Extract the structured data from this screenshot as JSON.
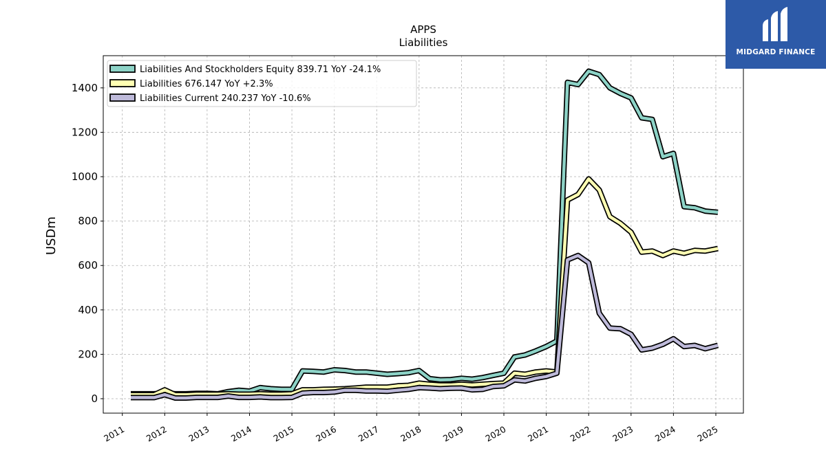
{
  "brand": {
    "name": "MIDGARD FINANCE",
    "bg_color": "#2d5aa8",
    "icon": "midgard-logo-icon"
  },
  "chart_data": {
    "type": "line",
    "title": "APPS",
    "subtitle": "Liabilities",
    "xlabel": "",
    "ylabel": "USDm",
    "xlim": [
      2010.55,
      2025.65
    ],
    "ylim": [
      -65,
      1545
    ],
    "yticks": [
      0,
      200,
      400,
      600,
      800,
      1000,
      1200,
      1400
    ],
    "xticks": [
      "2011",
      "2012",
      "2013",
      "2014",
      "2015",
      "2016",
      "2017",
      "2018",
      "2019",
      "2020",
      "2021",
      "2022",
      "2023",
      "2024",
      "2025"
    ],
    "grid": true,
    "legend_position": "top-left",
    "series": [
      {
        "name": "Liabilities And Stockholders Equity",
        "legend": "Liabilities And Stockholders Equity  839.71 YoY -24.1%",
        "color": "#8dd3c7",
        "points": [
          [
            2011.2,
            22
          ],
          [
            2011.5,
            22
          ],
          [
            2011.75,
            22
          ],
          [
            2012.0,
            25
          ],
          [
            2012.25,
            22
          ],
          [
            2012.5,
            22
          ],
          [
            2012.75,
            24
          ],
          [
            2013.0,
            24
          ],
          [
            2013.25,
            22
          ],
          [
            2013.5,
            32
          ],
          [
            2013.75,
            38
          ],
          [
            2014.0,
            34
          ],
          [
            2014.25,
            50
          ],
          [
            2014.5,
            45
          ],
          [
            2014.75,
            42
          ],
          [
            2015.0,
            42
          ],
          [
            2015.25,
            125
          ],
          [
            2015.5,
            123
          ],
          [
            2015.75,
            120
          ],
          [
            2016.0,
            130
          ],
          [
            2016.25,
            127
          ],
          [
            2016.5,
            120
          ],
          [
            2016.75,
            120
          ],
          [
            2017.0,
            115
          ],
          [
            2017.25,
            110
          ],
          [
            2017.5,
            113
          ],
          [
            2017.75,
            117
          ],
          [
            2018.0,
            127
          ],
          [
            2018.25,
            90
          ],
          [
            2018.5,
            85
          ],
          [
            2018.75,
            86
          ],
          [
            2019.0,
            92
          ],
          [
            2019.25,
            88
          ],
          [
            2019.5,
            95
          ],
          [
            2019.75,
            105
          ],
          [
            2020.0,
            115
          ],
          [
            2020.25,
            188
          ],
          [
            2020.5,
            197
          ],
          [
            2020.75,
            215
          ],
          [
            2021.0,
            235
          ],
          [
            2021.25,
            260
          ],
          [
            2021.5,
            1425
          ],
          [
            2021.75,
            1415
          ],
          [
            2022.0,
            1475
          ],
          [
            2022.25,
            1460
          ],
          [
            2022.5,
            1400
          ],
          [
            2022.75,
            1375
          ],
          [
            2023.0,
            1355
          ],
          [
            2023.25,
            1265
          ],
          [
            2023.5,
            1258
          ],
          [
            2023.75,
            1090
          ],
          [
            2024.0,
            1105
          ],
          [
            2024.25,
            865
          ],
          [
            2024.5,
            860
          ],
          [
            2024.75,
            845
          ],
          [
            2025.05,
            839.71
          ]
        ]
      },
      {
        "name": "Liabilities",
        "legend": "Liabilities  676.147 YoY +2.3%",
        "color": "#ffffb3",
        "points": [
          [
            2011.2,
            18
          ],
          [
            2011.5,
            18
          ],
          [
            2011.75,
            18
          ],
          [
            2012.0,
            40
          ],
          [
            2012.25,
            18
          ],
          [
            2012.5,
            18
          ],
          [
            2012.75,
            20
          ],
          [
            2013.0,
            20
          ],
          [
            2013.25,
            20
          ],
          [
            2013.5,
            22
          ],
          [
            2013.75,
            20
          ],
          [
            2014.0,
            20
          ],
          [
            2014.25,
            22
          ],
          [
            2014.5,
            20
          ],
          [
            2014.75,
            20
          ],
          [
            2015.0,
            22
          ],
          [
            2015.25,
            40
          ],
          [
            2015.5,
            40
          ],
          [
            2015.75,
            42
          ],
          [
            2016.0,
            43
          ],
          [
            2016.25,
            45
          ],
          [
            2016.5,
            48
          ],
          [
            2016.75,
            52
          ],
          [
            2017.0,
            52
          ],
          [
            2017.25,
            52
          ],
          [
            2017.5,
            58
          ],
          [
            2017.75,
            60
          ],
          [
            2018.0,
            70
          ],
          [
            2018.25,
            65
          ],
          [
            2018.5,
            62
          ],
          [
            2018.75,
            62
          ],
          [
            2019.0,
            65
          ],
          [
            2019.25,
            62
          ],
          [
            2019.5,
            65
          ],
          [
            2019.75,
            68
          ],
          [
            2020.0,
            70
          ],
          [
            2020.25,
            115
          ],
          [
            2020.5,
            110
          ],
          [
            2020.75,
            120
          ],
          [
            2021.0,
            125
          ],
          [
            2021.25,
            120
          ],
          [
            2021.5,
            895
          ],
          [
            2021.75,
            920
          ],
          [
            2022.0,
            990
          ],
          [
            2022.25,
            940
          ],
          [
            2022.5,
            820
          ],
          [
            2022.75,
            790
          ],
          [
            2023.0,
            750
          ],
          [
            2023.25,
            660
          ],
          [
            2023.5,
            665
          ],
          [
            2023.75,
            645
          ],
          [
            2024.0,
            665
          ],
          [
            2024.25,
            655
          ],
          [
            2024.5,
            668
          ],
          [
            2024.75,
            665
          ],
          [
            2025.05,
            676.147
          ]
        ]
      },
      {
        "name": "Liabilities Current",
        "legend": "Liabilities Current  240.237 YoY -10.6%",
        "color": "#bebada",
        "points": [
          [
            2011.2,
            5
          ],
          [
            2011.5,
            5
          ],
          [
            2011.75,
            5
          ],
          [
            2012.0,
            18
          ],
          [
            2012.25,
            3
          ],
          [
            2012.5,
            3
          ],
          [
            2012.75,
            6
          ],
          [
            2013.0,
            6
          ],
          [
            2013.25,
            6
          ],
          [
            2013.5,
            12
          ],
          [
            2013.75,
            6
          ],
          [
            2014.0,
            6
          ],
          [
            2014.25,
            8
          ],
          [
            2014.5,
            5
          ],
          [
            2014.75,
            5
          ],
          [
            2015.0,
            6
          ],
          [
            2015.25,
            25
          ],
          [
            2015.5,
            28
          ],
          [
            2015.75,
            28
          ],
          [
            2016.0,
            30
          ],
          [
            2016.25,
            38
          ],
          [
            2016.5,
            38
          ],
          [
            2016.75,
            35
          ],
          [
            2017.0,
            35
          ],
          [
            2017.25,
            33
          ],
          [
            2017.5,
            38
          ],
          [
            2017.75,
            42
          ],
          [
            2018.0,
            50
          ],
          [
            2018.25,
            48
          ],
          [
            2018.5,
            45
          ],
          [
            2018.75,
            47
          ],
          [
            2019.0,
            48
          ],
          [
            2019.25,
            40
          ],
          [
            2019.5,
            42
          ],
          [
            2019.75,
            55
          ],
          [
            2020.0,
            58
          ],
          [
            2020.25,
            85
          ],
          [
            2020.5,
            80
          ],
          [
            2020.75,
            92
          ],
          [
            2021.0,
            100
          ],
          [
            2021.25,
            115
          ],
          [
            2021.5,
            625
          ],
          [
            2021.75,
            645
          ],
          [
            2022.0,
            612
          ],
          [
            2022.25,
            385
          ],
          [
            2022.5,
            318
          ],
          [
            2022.75,
            315
          ],
          [
            2023.0,
            290
          ],
          [
            2023.25,
            220
          ],
          [
            2023.5,
            228
          ],
          [
            2023.75,
            245
          ],
          [
            2024.0,
            270
          ],
          [
            2024.25,
            235
          ],
          [
            2024.5,
            240
          ],
          [
            2024.75,
            225
          ],
          [
            2025.05,
            240.237
          ]
        ]
      }
    ]
  }
}
